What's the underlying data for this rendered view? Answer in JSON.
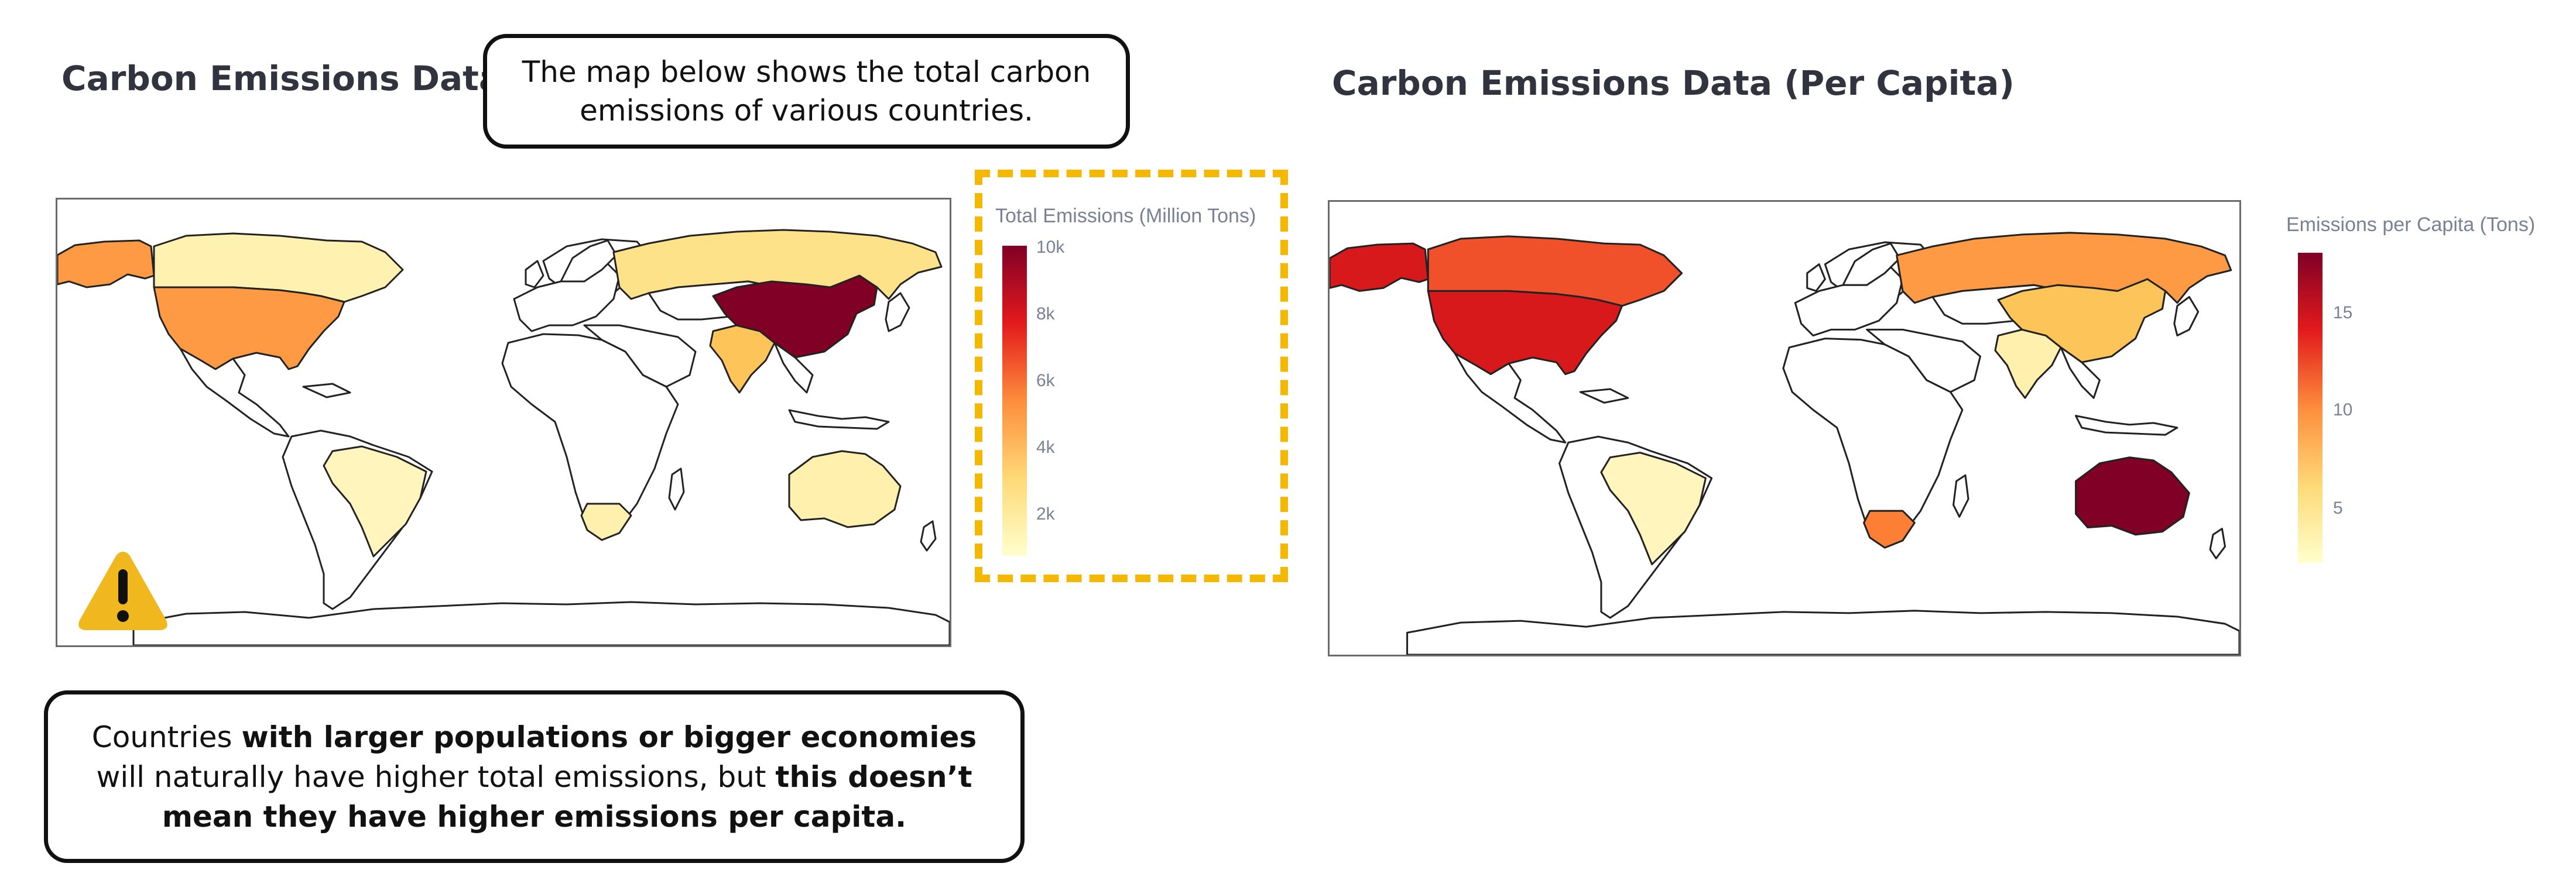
{
  "left": {
    "title": "Carbon Emissions Data",
    "callout": "The map below shows the total carbon emissions of various countries.",
    "legend": {
      "title": "Total Emissions (Million Tons)",
      "ticks": [
        "10k",
        "8k",
        "6k",
        "4k",
        "2k"
      ],
      "colors": [
        "#800026",
        "#e31a1c",
        "#fd8d3c",
        "#fed976",
        "#ffffcc"
      ]
    },
    "warning_icon": "warning-triangle-icon",
    "highlight_color": "#f5b800"
  },
  "right": {
    "title": "Carbon Emissions Data (Per Capita)",
    "legend": {
      "title": "Emissions per Capita (Tons)",
      "ticks": [
        "15",
        "10",
        "5"
      ],
      "colors": [
        "#800026",
        "#e31a1c",
        "#fd8d3c",
        "#fed976",
        "#ffffcc"
      ]
    }
  },
  "note": {
    "p1": "Countries ",
    "b1": "with larger populations or bigger economies",
    "p2": " will naturally have higher total emissions, but ",
    "b2": "this doesn’t mean they have higher emissions per capita."
  },
  "map_data": {
    "total_emissions": [
      {
        "country": "China",
        "color": "#800026"
      },
      {
        "country": "United States",
        "color": "#fd9a43"
      },
      {
        "country": "India",
        "color": "#fdc45a"
      },
      {
        "country": "Russia",
        "color": "#fee28a"
      },
      {
        "country": "Canada",
        "color": "#fff2b0"
      },
      {
        "country": "Brazil",
        "color": "#fff5bd"
      },
      {
        "country": "South Africa",
        "color": "#fff0ad"
      },
      {
        "country": "Australia",
        "color": "#fff0ad"
      },
      {
        "country": "Alaska (United States)",
        "color": "#fd9a43"
      }
    ],
    "per_capita": [
      {
        "country": "Australia",
        "color": "#800026"
      },
      {
        "country": "United States",
        "color": "#d7191c"
      },
      {
        "country": "Canada",
        "color": "#f0502a"
      },
      {
        "country": "Alaska (United States)",
        "color": "#d7191c"
      },
      {
        "country": "Russia",
        "color": "#fd9a43"
      },
      {
        "country": "South Africa",
        "color": "#fd7f35"
      },
      {
        "country": "China",
        "color": "#fdc45a"
      },
      {
        "country": "India",
        "color": "#fff0ad"
      },
      {
        "country": "Brazil",
        "color": "#fff5bd"
      }
    ]
  }
}
